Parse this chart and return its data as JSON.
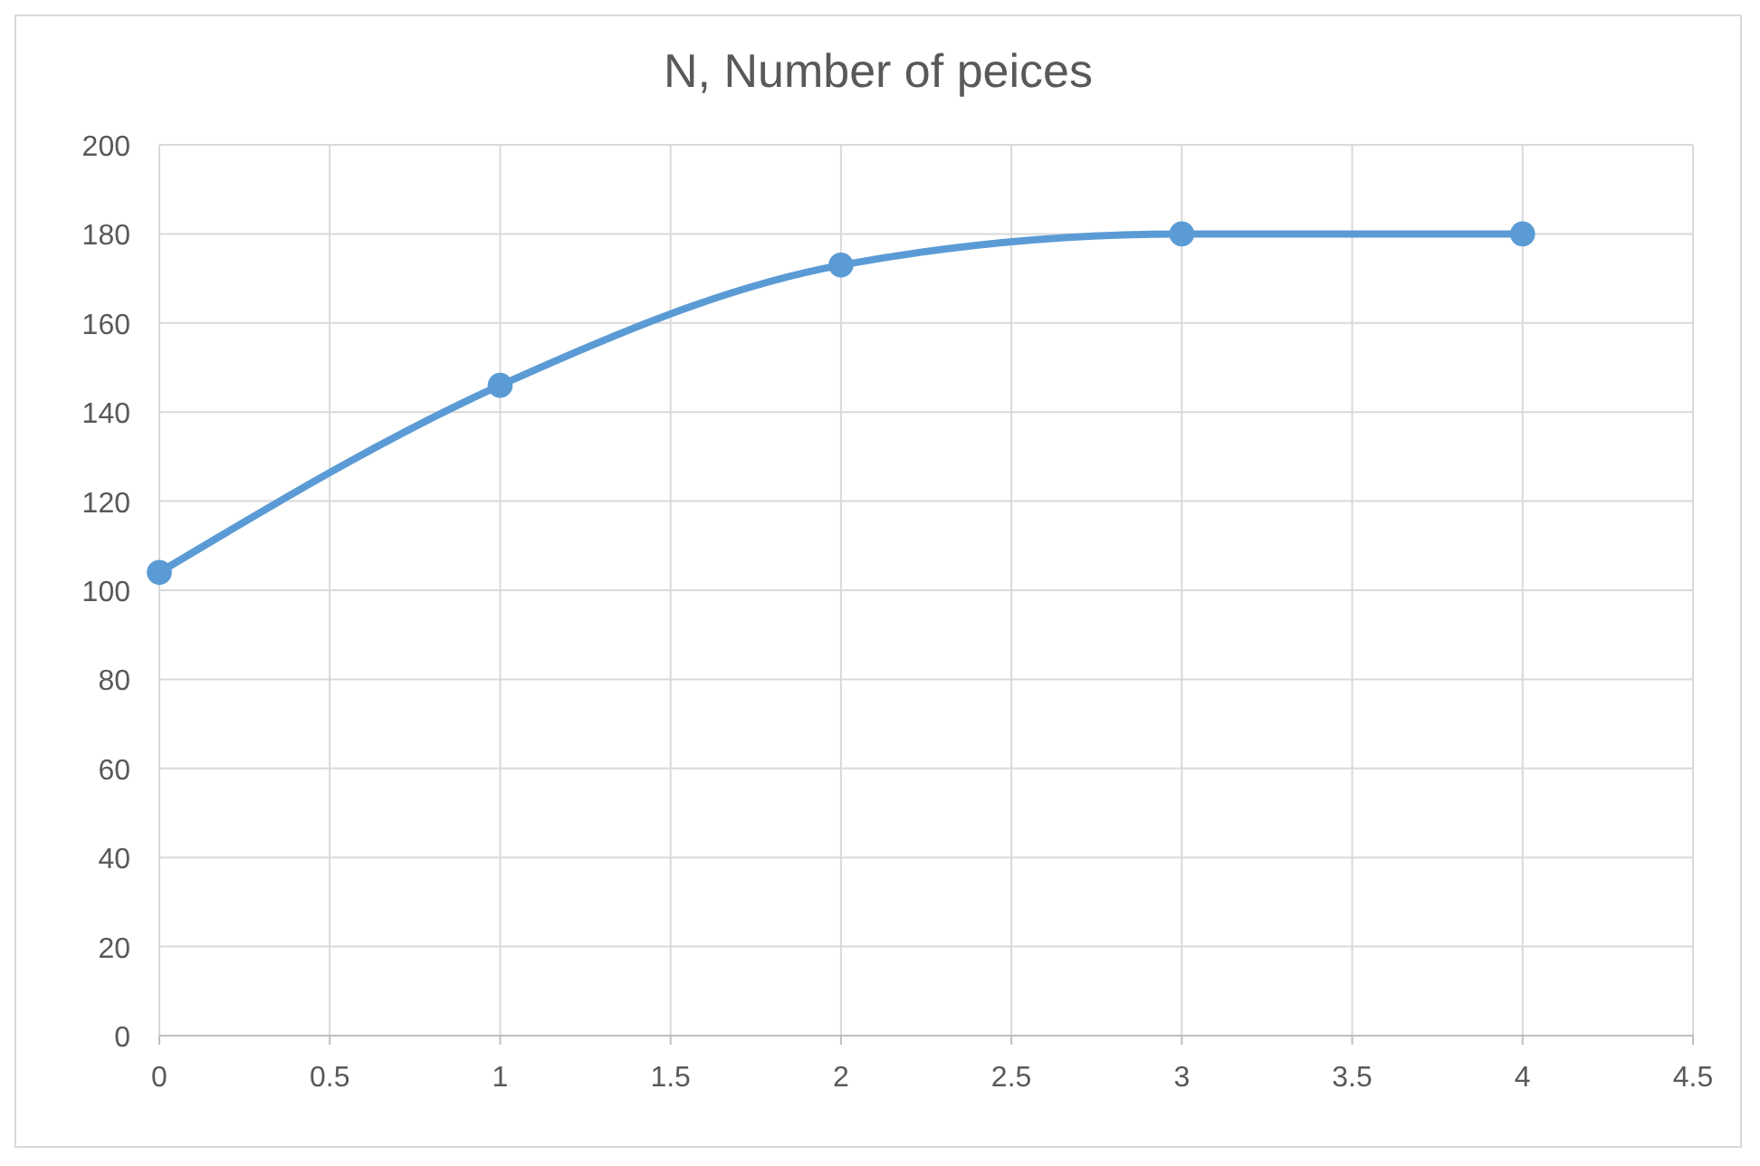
{
  "chart_data": {
    "type": "line",
    "title": "N, Number of peices",
    "x": [
      0,
      1,
      2,
      3,
      4
    ],
    "series": [
      {
        "color": "#5b9bd5",
        "values": [
          104,
          146,
          173,
          180,
          180
        ]
      }
    ],
    "xlim": [
      0,
      4.5
    ],
    "xticks": [
      0,
      0.5,
      1,
      1.5,
      2,
      2.5,
      3,
      3.5,
      4,
      4.5
    ],
    "ylim": [
      0,
      200
    ],
    "yticks": [
      0,
      20,
      40,
      60,
      80,
      100,
      120,
      140,
      160,
      180,
      200
    ],
    "grid": true,
    "marker": "circle",
    "line_style": "solid"
  }
}
